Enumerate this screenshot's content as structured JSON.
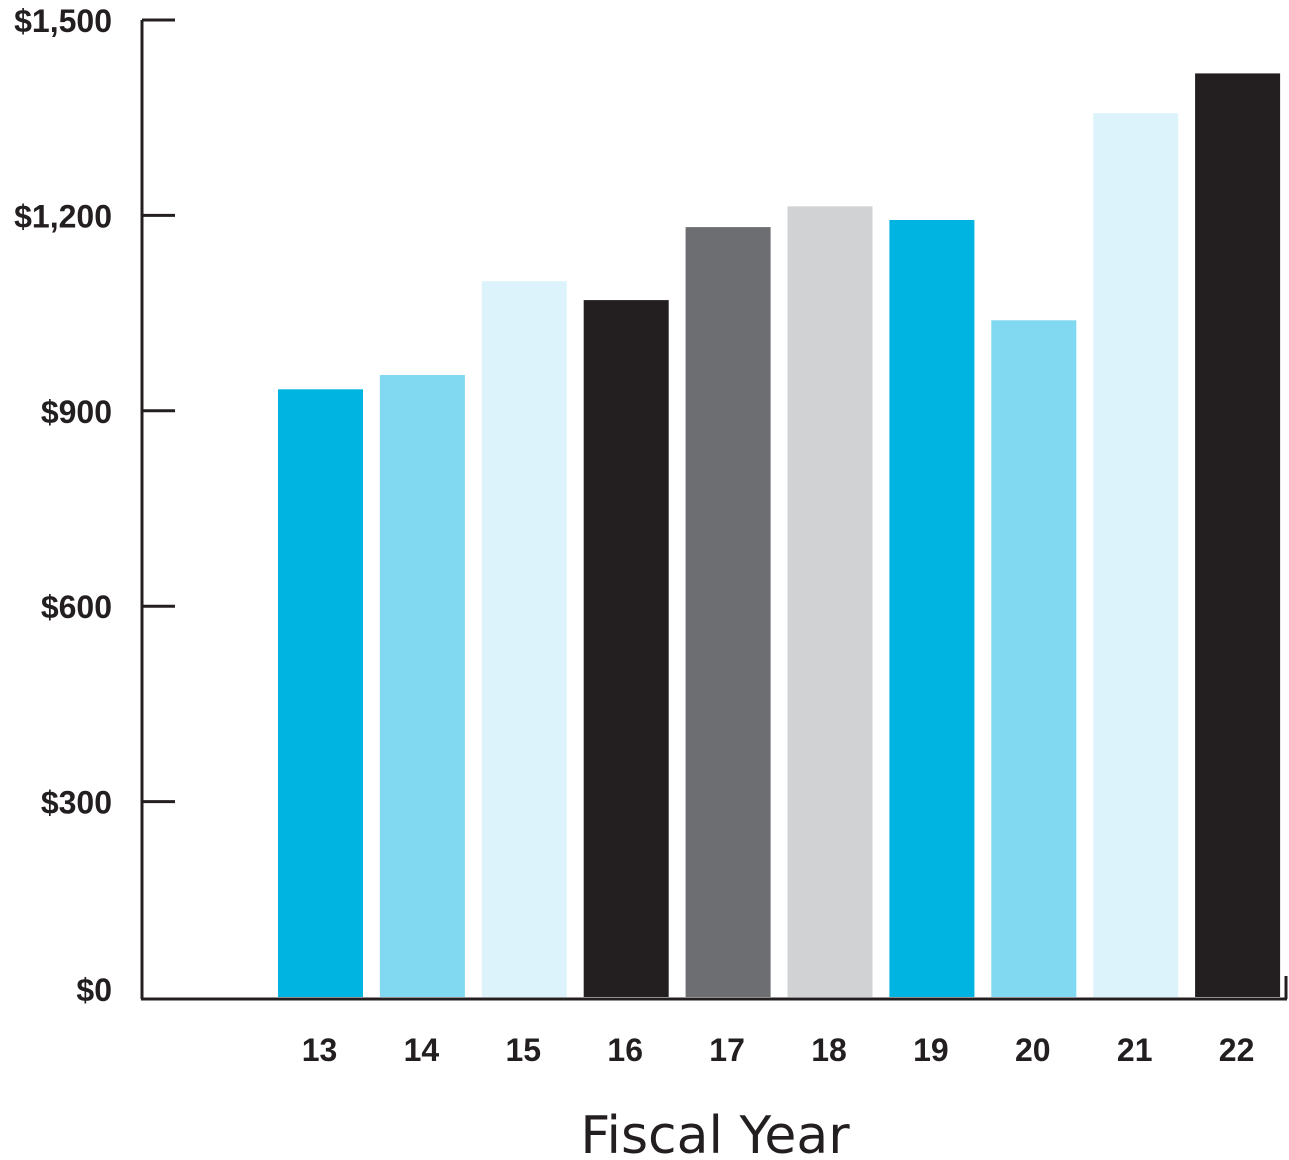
{
  "chart_data": {
    "type": "bar",
    "title": "",
    "xlabel": "Fiscal Year",
    "ylabel": "",
    "categories": [
      "13",
      "14",
      "15",
      "16",
      "17",
      "18",
      "19",
      "20",
      "21",
      "22"
    ],
    "values": [
      933,
      955,
      1099,
      1070,
      1182,
      1214,
      1193,
      1039,
      1357,
      1418
    ],
    "colors": [
      "#00b4e2",
      "#80d8f1",
      "#dcf3fb",
      "#231f20",
      "#6d6e71",
      "#d1d2d4",
      "#00b4e2",
      "#80d8f1",
      "#dcf3fb",
      "#231f20"
    ],
    "yticks": [
      0,
      300,
      600,
      900,
      1200,
      1500
    ],
    "ytick_labels": [
      "$0",
      "$300",
      "$600",
      "$900",
      "$1,200",
      "$1,500"
    ],
    "ylim": [
      0,
      1500
    ],
    "grid": false,
    "legend": "none"
  }
}
